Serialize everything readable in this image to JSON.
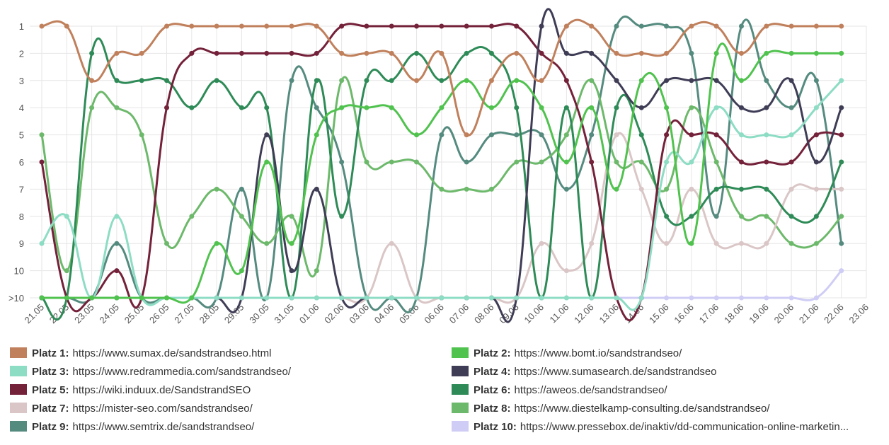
{
  "chart_data": {
    "type": "line",
    "categories": [
      "21.05",
      "22.05",
      "23.05",
      "24.05",
      "25.05",
      "26.05",
      "27.05",
      "28.05",
      "29.05",
      "30.05",
      "31.05",
      "01.06",
      "02.06",
      "03.06",
      "04.06",
      "05.06",
      "06.06",
      "07.06",
      "08.06",
      "09.06",
      "10.06",
      "11.06",
      "12.06",
      "13.06",
      "14.06",
      "15.06",
      "16.06",
      "17.06",
      "18.06",
      "19.06",
      "20.06",
      "21.06",
      "22.06",
      "23.06"
    ],
    "ylim": [
      1,
      11
    ],
    "y_reversed": true,
    "yticks": [
      1,
      2,
      3,
      4,
      5,
      6,
      7,
      8,
      9,
      10,
      {
        "value": 11,
        "label": ">10"
      }
    ],
    "grid": true,
    "legend": "bottom",
    "series": [
      {
        "name": "Platz 1:",
        "url": "https://www.sumax.de/sandstrandseo.html",
        "color": "#c0805c",
        "values": [
          1,
          1,
          3,
          2,
          2,
          1,
          1,
          1,
          1,
          1,
          1,
          1,
          2,
          2,
          2,
          3,
          2,
          5,
          3,
          2,
          3,
          1,
          1,
          2,
          2,
          2,
          1,
          1,
          2,
          1,
          1,
          1,
          1,
          null
        ]
      },
      {
        "name": "Platz 2:",
        "url": "https://www.bomt.io/sandstrandseo/",
        "color": "#50c24e",
        "values": [
          11,
          11,
          11,
          11,
          11,
          11,
          11,
          9,
          10,
          6,
          9,
          5,
          4,
          4,
          4,
          5,
          4,
          3,
          4,
          3,
          4,
          6,
          4,
          7,
          3,
          4,
          9,
          2,
          3,
          2,
          2,
          2,
          2,
          null
        ]
      },
      {
        "name": "Platz 3:",
        "url": "https://www.redrammedia.com/sandstrandseo/",
        "color": "#8ddcc4",
        "values": [
          9,
          8,
          11,
          8,
          11,
          11,
          11,
          11,
          11,
          11,
          11,
          11,
          11,
          11,
          11,
          11,
          11,
          11,
          11,
          11,
          11,
          11,
          11,
          11,
          11,
          6,
          6,
          4,
          5,
          5,
          5,
          4,
          3,
          null
        ]
      },
      {
        "name": "Platz 4:",
        "url": "https://www.sumasearch.de/sandstrandseo",
        "color": "#3f3d56",
        "values": [
          11,
          11,
          11,
          11,
          11,
          11,
          11,
          11,
          11,
          5,
          10,
          7,
          11,
          11,
          11,
          11,
          11,
          11,
          11,
          11,
          1,
          2,
          2,
          3,
          4,
          3,
          3,
          3,
          4,
          4,
          3,
          6,
          4,
          null
        ]
      },
      {
        "name": "Platz 5:",
        "url": "https://wiki.induux.de/SandstrandSEO",
        "color": "#74213a",
        "values": [
          6,
          11,
          11,
          10,
          11,
          4,
          2,
          2,
          2,
          2,
          2,
          2,
          1,
          1,
          1,
          1,
          1,
          1,
          1,
          1,
          2,
          3,
          6,
          11,
          11,
          5,
          5,
          5,
          6,
          6,
          6,
          5,
          5,
          null
        ]
      },
      {
        "name": "Platz 6:",
        "url": "https://aweos.de/sandstrandseo/",
        "color": "#2e8b57",
        "values": [
          11,
          11,
          2,
          3,
          3,
          3,
          4,
          3,
          4,
          4,
          11,
          3,
          8,
          3,
          3,
          2,
          3,
          2,
          2,
          4,
          11,
          4,
          11,
          4,
          5,
          8,
          8,
          7,
          7,
          7,
          8,
          8,
          6,
          null
        ]
      },
      {
        "name": "Platz 7:",
        "url": "https://mister-seo.com/sandstrandseo/",
        "color": "#dac6c6",
        "values": [
          11,
          11,
          11,
          11,
          11,
          11,
          11,
          11,
          11,
          11,
          11,
          11,
          11,
          11,
          9,
          11,
          11,
          11,
          11,
          11,
          9,
          10,
          9,
          5,
          7,
          9,
          7,
          9,
          9,
          9,
          7,
          7,
          7,
          null
        ]
      },
      {
        "name": "Platz 8:",
        "url": "https://www.diestelkamp-consulting.de/sandstrandseo/",
        "color": "#6db96b",
        "values": [
          5,
          10,
          4,
          4,
          5,
          9,
          8,
          7,
          8,
          9,
          8,
          10,
          3,
          6,
          6,
          6,
          7,
          7,
          7,
          6,
          6,
          5,
          3,
          6,
          6,
          7,
          4,
          6,
          8,
          8,
          9,
          9,
          8,
          null
        ]
      },
      {
        "name": "Platz 9:",
        "url": "https://www.semtrix.de/sandstrandseo/",
        "color": "#558b7f",
        "values": [
          11,
          11,
          11,
          9,
          11,
          11,
          11,
          11,
          7,
          11,
          3,
          4,
          6,
          11,
          11,
          11,
          5,
          6,
          5,
          5,
          5,
          7,
          5,
          1,
          1,
          1,
          2,
          8,
          1,
          3,
          4,
          3,
          9,
          null
        ]
      },
      {
        "name": "Platz 10:",
        "url": "https://www.pressebox.de/inaktiv/dd-communication-online-marketin...",
        "color": "#cfcdf5",
        "values": [
          11,
          11,
          11,
          11,
          11,
          11,
          11,
          11,
          11,
          11,
          11,
          11,
          11,
          11,
          11,
          11,
          11,
          11,
          11,
          11,
          11,
          11,
          11,
          11,
          11,
          11,
          11,
          11,
          11,
          11,
          11,
          11,
          10,
          null
        ]
      }
    ]
  }
}
